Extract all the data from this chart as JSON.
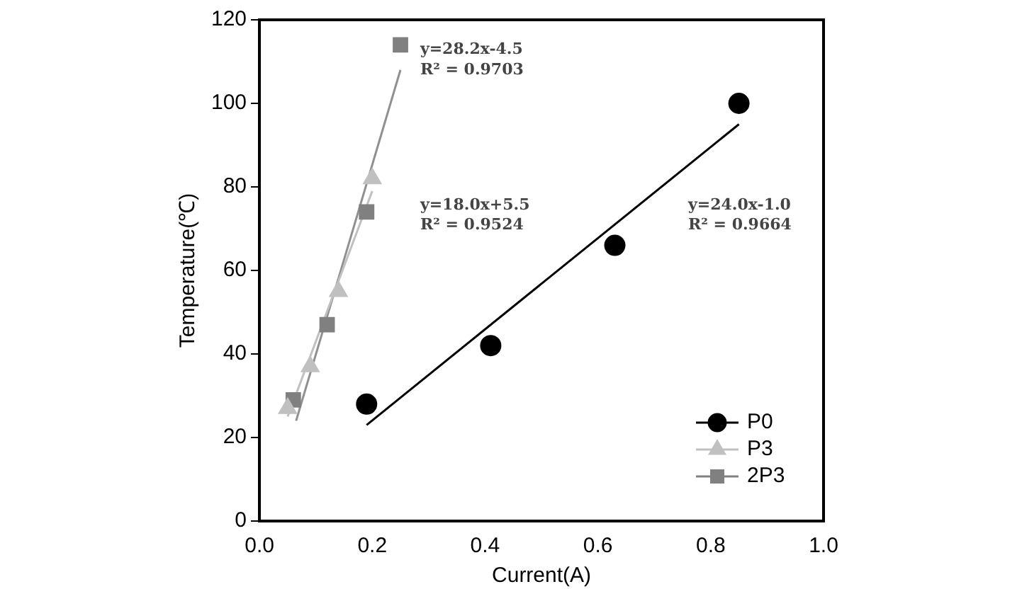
{
  "chart_data": {
    "type": "scatter",
    "xlabel": "Current(A)",
    "ylabel": "Temperature(℃)",
    "xlim": [
      0,
      1
    ],
    "xticks": [
      {
        "value": 0,
        "label": "0.0"
      },
      0.2,
      0.4,
      0.6,
      0.8,
      {
        "value": 1,
        "label": "1.0"
      }
    ],
    "ylim": [
      0,
      120
    ],
    "yticks": [
      0,
      20,
      40,
      60,
      80,
      100,
      120
    ],
    "grid": false,
    "legend": "bottom right",
    "series": [
      {
        "name": "P0",
        "color": "#000000",
        "marker": "circle",
        "x": [
          0.19,
          0.41,
          0.63,
          0.85
        ],
        "values": [
          28,
          42,
          66,
          100
        ]
      },
      {
        "name": "P3",
        "color": "#c0c0c0",
        "marker": "triangle",
        "x": [
          0.05,
          0.09,
          0.14,
          0.2
        ],
        "values": [
          27,
          37,
          55,
          82
        ]
      },
      {
        "name": "2P3",
        "color": "#808080",
        "marker": "square",
        "x": [
          0.06,
          0.12,
          0.19,
          0.25
        ],
        "values": [
          29,
          47,
          74,
          114
        ]
      },
      {
        "type": "line",
        "color": "#000000",
        "marker": "none",
        "x": [
          0.19,
          0.85
        ],
        "values": [
          23,
          95
        ]
      },
      {
        "type": "line",
        "color": "#c0c0c0",
        "marker": "none",
        "x": [
          0.05,
          0.2
        ],
        "values": [
          25,
          79
        ]
      },
      {
        "type": "line",
        "color": "#909090",
        "marker": "none",
        "x": [
          0.065,
          0.25
        ],
        "values": [
          24,
          108
        ]
      }
    ],
    "annotations": [
      "y=28.2x-4.5",
      "R² = 0.9703",
      "y=18.0x+5.5",
      "R² = 0.9524",
      "y=24.0x-1.0",
      "R² = 0.9664"
    ]
  }
}
